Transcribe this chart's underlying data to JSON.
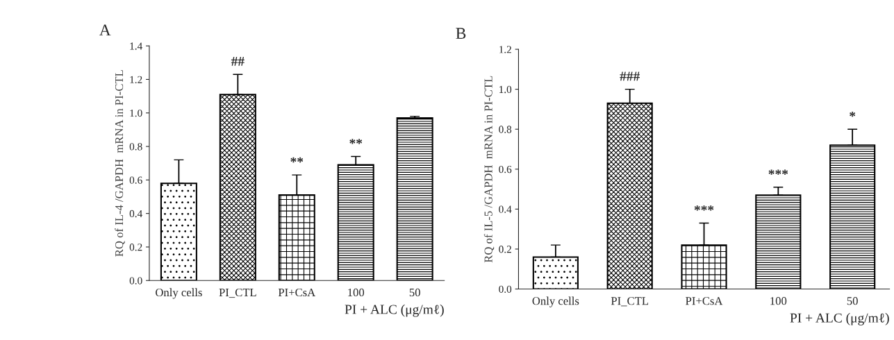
{
  "chart_data": [
    {
      "type": "bar",
      "title": "A",
      "ylabel": "RQ of IL-4 /GAPDH  mRNA in PI-CTL",
      "xlabel": "PI + ALC (μg/mℓ)",
      "categories": [
        "Only cells",
        "PI_CTL",
        "PI+CsA",
        "100",
        "50"
      ],
      "values": [
        0.58,
        1.11,
        0.51,
        0.69,
        0.97
      ],
      "errors": [
        [
          0.58,
          0.72
        ],
        [
          1.11,
          1.23
        ],
        [
          0.51,
          0.63
        ],
        [
          0.69,
          0.74
        ],
        [
          0.97,
          0.98
        ]
      ],
      "ylim": [
        0,
        1.4
      ],
      "yticks": [
        {
          "value": 0,
          "label": "0.0"
        },
        {
          "value": 0.2,
          "label": "0.2"
        },
        {
          "value": 0.4,
          "label": "0.4"
        },
        {
          "value": 0.6,
          "label": "0.6"
        },
        {
          "value": 0.8,
          "label": "0.8"
        },
        {
          "value": 1.0,
          "label": "1.0"
        },
        {
          "value": 1.2,
          "label": "1.2"
        },
        {
          "value": 1.4,
          "label": "1.4"
        }
      ],
      "annotations": [
        {
          "text": "##",
          "x": "PI_CTL",
          "y": 1.23
        },
        {
          "text": "**",
          "x": "PI+CsA",
          "y": 0.63
        },
        {
          "text": "**",
          "x": "100",
          "y": 0.74
        }
      ],
      "grid": false,
      "legend": false
    },
    {
      "type": "bar",
      "title": "B",
      "ylabel": "RQ of IL-5 /GAPDH  mRNA in PI-CTL",
      "xlabel": "PI + ALC (μg/mℓ)",
      "categories": [
        "Only cells",
        "PI_CTL",
        "PI+CsA",
        "100",
        "50"
      ],
      "values": [
        0.16,
        0.93,
        0.22,
        0.47,
        0.72
      ],
      "errors": [
        [
          0.16,
          0.22
        ],
        [
          0.93,
          1.0
        ],
        [
          0.22,
          0.33
        ],
        [
          0.47,
          0.51
        ],
        [
          0.72,
          0.8
        ]
      ],
      "ylim": [
        0,
        1.2
      ],
      "yticks": [
        {
          "value": 0,
          "label": "0.0"
        },
        {
          "value": 0.2,
          "label": "0.2"
        },
        {
          "value": 0.4,
          "label": "0.4"
        },
        {
          "value": 0.6,
          "label": "0.6"
        },
        {
          "value": 0.8,
          "label": "0.8"
        },
        {
          "value": 1.0,
          "label": "1.0"
        },
        {
          "value": 1.2,
          "label": "1.2"
        }
      ],
      "annotations": [
        {
          "text": "###",
          "x": "PI_CTL",
          "y": 1.0
        },
        {
          "text": "***",
          "x": "PI+CsA",
          "y": 0.33
        },
        {
          "text": "***",
          "x": "100",
          "y": 0.51
        },
        {
          "text": "*",
          "x": "50",
          "y": 0.8
        }
      ],
      "grid": false,
      "legend": false
    }
  ]
}
